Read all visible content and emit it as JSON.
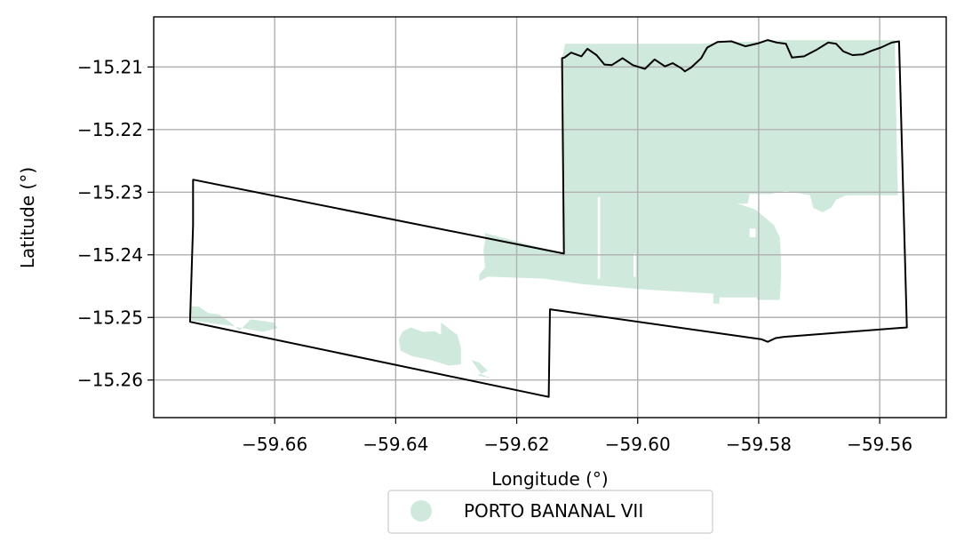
{
  "map": {
    "xlabel": "Longitude (°)",
    "ylabel": "Latitude (°)",
    "xlim": [
      -59.68,
      -59.549
    ],
    "ylim": [
      -15.266,
      -15.202
    ],
    "grid": true,
    "x_ticks": [
      {
        "value": -59.66,
        "label": "−59.66"
      },
      {
        "value": -59.64,
        "label": "−59.64"
      },
      {
        "value": -59.62,
        "label": "−59.62"
      },
      {
        "value": -59.6,
        "label": "−59.60"
      },
      {
        "value": -59.58,
        "label": "−59.58"
      },
      {
        "value": -59.56,
        "label": "−59.56"
      }
    ],
    "y_ticks": [
      {
        "value": -15.21,
        "label": "−15.21"
      },
      {
        "value": -15.22,
        "label": "−15.22"
      },
      {
        "value": -15.23,
        "label": "−15.23"
      },
      {
        "value": -15.24,
        "label": "−15.24"
      },
      {
        "value": -15.25,
        "label": "−15.25"
      },
      {
        "value": -15.26,
        "label": "−15.26"
      }
    ],
    "colors": {
      "fill": "#cfeadd",
      "boundary": "#000000",
      "grid": "#b0b0b0",
      "frame": "#000000"
    },
    "legend": {
      "placement": "below-center",
      "entries": [
        {
          "label": "PORTO BANANAL VII",
          "color": "#cfeadd",
          "marker": "circle"
        }
      ]
    },
    "boundary": [
      [
        -59.674,
        -15.2507
      ],
      [
        -59.6735,
        -15.2353
      ],
      [
        -59.6735,
        -15.228
      ],
      [
        -59.6122,
        -15.2398
      ],
      [
        -59.6125,
        -15.2086
      ],
      [
        -59.6121,
        -15.2085
      ],
      [
        -59.611,
        -15.2077
      ],
      [
        -59.6093,
        -15.2083
      ],
      [
        -59.6083,
        -15.2071
      ],
      [
        -59.6068,
        -15.2081
      ],
      [
        -59.6055,
        -15.2096
      ],
      [
        -59.6043,
        -15.2097
      ],
      [
        -59.6025,
        -15.2086
      ],
      [
        -59.6008,
        -15.2097
      ],
      [
        -59.5988,
        -15.2103
      ],
      [
        -59.5972,
        -15.2088
      ],
      [
        -59.5955,
        -15.2099
      ],
      [
        -59.5942,
        -15.2094
      ],
      [
        -59.5928,
        -15.2102
      ],
      [
        -59.5922,
        -15.2107
      ],
      [
        -59.5912,
        -15.2101
      ],
      [
        -59.5895,
        -15.2086
      ],
      [
        -59.5885,
        -15.2069
      ],
      [
        -59.5868,
        -15.206
      ],
      [
        -59.5845,
        -15.2059
      ],
      [
        -59.5822,
        -15.2067
      ],
      [
        -59.58,
        -15.2062
      ],
      [
        -59.5785,
        -15.2057
      ],
      [
        -59.577,
        -15.2061
      ],
      [
        -59.5755,
        -15.2063
      ],
      [
        -59.5745,
        -15.2085
      ],
      [
        -59.5725,
        -15.2083
      ],
      [
        -59.5705,
        -15.2073
      ],
      [
        -59.5685,
        -15.2061
      ],
      [
        -59.5672,
        -15.2063
      ],
      [
        -59.566,
        -15.2075
      ],
      [
        -59.5645,
        -15.2081
      ],
      [
        -59.5628,
        -15.208
      ],
      [
        -59.5613,
        -15.2074
      ],
      [
        -59.5598,
        -15.2069
      ],
      [
        -59.558,
        -15.2061
      ],
      [
        -59.5568,
        -15.2059
      ],
      [
        -59.5555,
        -15.2516
      ],
      [
        -59.5758,
        -15.2531
      ],
      [
        -59.5772,
        -15.2533
      ],
      [
        -59.5785,
        -15.2539
      ],
      [
        -59.5795,
        -15.2535
      ],
      [
        -59.6145,
        -15.2487
      ],
      [
        -59.6147,
        -15.2627
      ],
      [
        -59.674,
        -15.2507
      ]
    ],
    "fill_regions": [
      [
        [
          -59.6125,
          -15.2087
        ],
        [
          -59.612,
          -15.2063
        ],
        [
          -59.59,
          -15.2063
        ],
        [
          -59.575,
          -15.2057
        ],
        [
          -59.5575,
          -15.2057
        ],
        [
          -59.557,
          -15.2305
        ],
        [
          -59.5655,
          -15.2305
        ],
        [
          -59.5672,
          -15.2312
        ],
        [
          -59.568,
          -15.2325
        ],
        [
          -59.5695,
          -15.2332
        ],
        [
          -59.571,
          -15.2325
        ],
        [
          -59.5715,
          -15.2305
        ],
        [
          -59.5755,
          -15.2298
        ],
        [
          -59.578,
          -15.2303
        ],
        [
          -59.5815,
          -15.2303
        ],
        [
          -59.5818,
          -15.2318
        ],
        [
          -59.5835,
          -15.2318
        ],
        [
          -59.5805,
          -15.2328
        ],
        [
          -59.5788,
          -15.2342
        ],
        [
          -59.5775,
          -15.2352
        ],
        [
          -59.5765,
          -15.2372
        ],
        [
          -59.5763,
          -15.2407
        ],
        [
          -59.5763,
          -15.2435
        ],
        [
          -59.5765,
          -15.2472
        ],
        [
          -59.5803,
          -15.2472
        ],
        [
          -59.5803,
          -15.2468
        ],
        [
          -59.5865,
          -15.2468
        ],
        [
          -59.5865,
          -15.2478
        ],
        [
          -59.5875,
          -15.2478
        ],
        [
          -59.5875,
          -15.2462
        ],
        [
          -59.5995,
          -15.2455
        ],
        [
          -59.609,
          -15.2447
        ],
        [
          -59.6155,
          -15.2438
        ],
        [
          -59.6248,
          -15.2435
        ],
        [
          -59.6262,
          -15.2442
        ],
        [
          -59.6262,
          -15.2432
        ],
        [
          -59.6252,
          -15.242
        ],
        [
          -59.6255,
          -15.2392
        ],
        [
          -59.6252,
          -15.2378
        ],
        [
          -59.6252,
          -15.2368
        ],
        [
          -59.6254,
          -15.2365
        ],
        [
          -59.6122,
          -15.2398
        ],
        [
          -59.6125,
          -15.2087
        ]
      ],
      [
        [
          -59.6738,
          -15.2482
        ],
        [
          -59.6725,
          -15.2483
        ],
        [
          -59.671,
          -15.2493
        ],
        [
          -59.6692,
          -15.2495
        ],
        [
          -59.6672,
          -15.2509
        ],
        [
          -59.6658,
          -15.2521
        ],
        [
          -59.664,
          -15.2503
        ],
        [
          -59.6602,
          -15.2508
        ],
        [
          -59.6595,
          -15.2517
        ],
        [
          -59.662,
          -15.2523
        ],
        [
          -59.6675,
          -15.2513
        ],
        [
          -59.6738,
          -15.2505
        ]
      ],
      [
        [
          -59.6388,
          -15.2522
        ],
        [
          -59.6375,
          -15.2516
        ],
        [
          -59.6355,
          -15.2523
        ],
        [
          -59.6335,
          -15.2522
        ],
        [
          -59.6325,
          -15.2528
        ],
        [
          -59.6325,
          -15.2508
        ],
        [
          -59.6312,
          -15.2518
        ],
        [
          -59.6298,
          -15.2528
        ],
        [
          -59.6292,
          -15.2549
        ],
        [
          -59.6292,
          -15.2575
        ],
        [
          -59.6312,
          -15.2577
        ],
        [
          -59.6342,
          -15.2568
        ],
        [
          -59.6373,
          -15.2562
        ],
        [
          -59.6392,
          -15.2553
        ],
        [
          -59.6395,
          -15.2535
        ],
        [
          -59.6388,
          -15.2522
        ]
      ],
      [
        [
          -59.6275,
          -15.2568
        ],
        [
          -59.6262,
          -15.2572
        ],
        [
          -59.6248,
          -15.2585
        ],
        [
          -59.6265,
          -15.2593
        ],
        [
          -59.6242,
          -15.2597
        ],
        [
          -59.6258,
          -15.2591
        ],
        [
          -59.6275,
          -15.2568
        ]
      ]
    ],
    "holes": [
      [
        [
          -59.6062,
          -15.2308
        ],
        [
          -59.6062,
          -15.2438
        ],
        [
          -59.6066,
          -15.2438
        ],
        [
          -59.6066,
          -15.2308
        ],
        [
          -59.6062,
          -15.2308
        ]
      ],
      [
        [
          -59.6003,
          -15.2398
        ],
        [
          -59.6003,
          -15.2435
        ],
        [
          -59.6007,
          -15.2435
        ],
        [
          -59.6007,
          -15.2398
        ],
        [
          -59.6003,
          -15.2398
        ]
      ],
      [
        [
          -59.5805,
          -15.2358
        ],
        [
          -59.5805,
          -15.2372
        ],
        [
          -59.5815,
          -15.2372
        ],
        [
          -59.5815,
          -15.2358
        ],
        [
          -59.5805,
          -15.2358
        ]
      ]
    ]
  }
}
